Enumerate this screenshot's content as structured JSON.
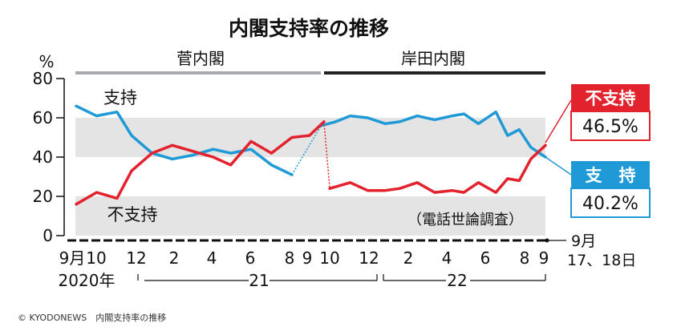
{
  "chart_data": {
    "type": "line",
    "title": "内閣支持率の推移",
    "yunit": "%",
    "ylim": [
      0,
      80
    ],
    "yticks": [
      0,
      20,
      40,
      60,
      80
    ],
    "grid": "alternating gray bands",
    "note": "（電話世論調査）",
    "eras": [
      {
        "name": "菅内閣",
        "color": "#a8a8b0"
      },
      {
        "name": "岸田内閣",
        "color": "#222222"
      }
    ],
    "x_tick_labels": [
      "9月",
      "10",
      "12",
      "2",
      "4",
      "6",
      "8",
      "9",
      "10",
      "12",
      "2",
      "4",
      "6",
      "8",
      "9"
    ],
    "year_labels": [
      "2020年",
      "21",
      "22"
    ],
    "end_label": "9月\n17、18日",
    "series": [
      {
        "name": "支持",
        "color": "#1f9ad6",
        "end_label": "支　持",
        "end_value": "40.2%",
        "segments": [
          [
            [
              0,
              66
            ],
            [
              0.7,
              61
            ],
            [
              1.4,
              63
            ],
            [
              1.9,
              51
            ],
            [
              2.6,
              42
            ],
            [
              3.3,
              39
            ],
            [
              4,
              41
            ],
            [
              4.7,
              44
            ],
            [
              5.3,
              42
            ],
            [
              6,
              44
            ],
            [
              6.7,
              36
            ],
            [
              7.4,
              31
            ]
          ],
          [
            [
              8.4,
              56
            ],
            [
              8.9,
              58
            ],
            [
              9.4,
              61
            ],
            [
              10,
              60
            ],
            [
              10.6,
              57
            ],
            [
              11.1,
              58
            ],
            [
              11.7,
              61
            ],
            [
              12.3,
              59
            ],
            [
              12.9,
              61
            ],
            [
              13.3,
              62
            ],
            [
              13.8,
              57
            ],
            [
              14.4,
              63
            ],
            [
              14.8,
              51
            ],
            [
              15.2,
              54
            ],
            [
              15.6,
              45
            ],
            [
              16.1,
              40
            ]
          ]
        ]
      },
      {
        "name": "不支持",
        "color": "#e2232e",
        "end_label": "不支持",
        "end_value": "46.5%",
        "segments": [
          [
            [
              0,
              16
            ],
            [
              0.7,
              22
            ],
            [
              1.4,
              19
            ],
            [
              1.9,
              33
            ],
            [
              2.6,
              42
            ],
            [
              3.3,
              46
            ],
            [
              4,
              43
            ],
            [
              4.7,
              40
            ],
            [
              5.3,
              36
            ],
            [
              6,
              48
            ],
            [
              6.7,
              42
            ],
            [
              7.4,
              50
            ],
            [
              8,
              51
            ],
            [
              8.5,
              58
            ]
          ],
          [
            [
              8.7,
              24
            ],
            [
              9.4,
              27
            ],
            [
              10,
              23
            ],
            [
              10.6,
              23
            ],
            [
              11.1,
              24
            ],
            [
              11.7,
              27
            ],
            [
              12.3,
              22
            ],
            [
              12.9,
              23
            ],
            [
              13.3,
              22
            ],
            [
              13.8,
              27
            ],
            [
              14.4,
              22
            ],
            [
              14.8,
              29
            ],
            [
              15.2,
              28
            ],
            [
              15.6,
              39
            ],
            [
              16.1,
              46
            ]
          ]
        ]
      }
    ],
    "transition_dotted": {
      "支持": [
        [
          7.4,
          31
        ],
        [
          8.4,
          56
        ]
      ],
      "不支持": [
        [
          8.5,
          58
        ],
        [
          8.7,
          24
        ]
      ]
    }
  },
  "credit": "© KYODONEWS　内閣支持率の推移"
}
